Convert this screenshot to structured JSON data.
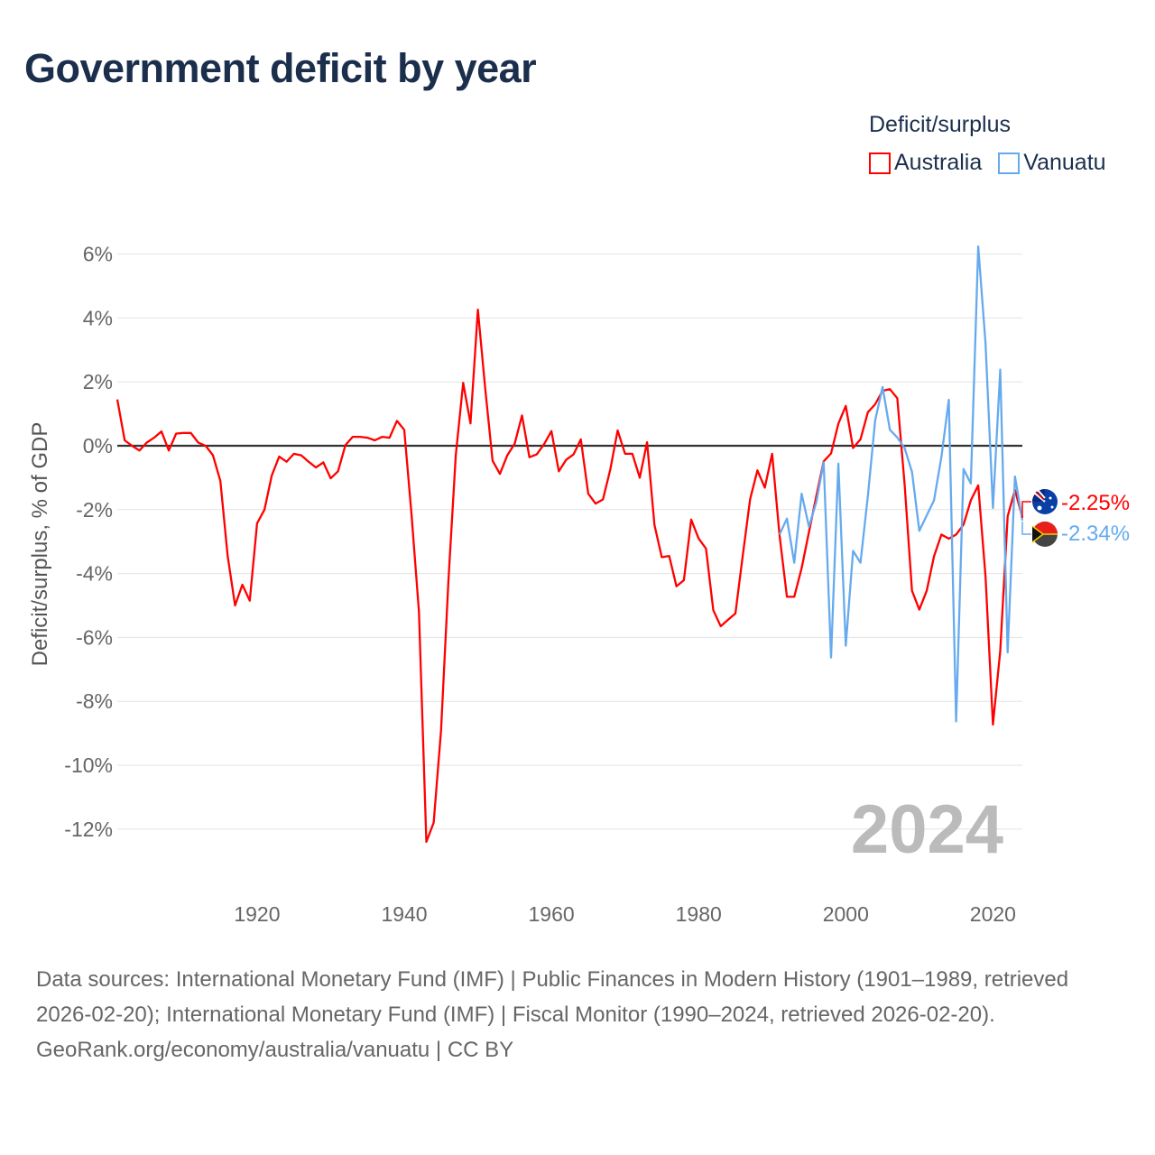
{
  "title": "Government deficit by year",
  "legend": {
    "title": "Deficit/surplus",
    "items": [
      {
        "label": "Australia",
        "color": "#ff0000"
      },
      {
        "label": "Vanuatu",
        "color": "#66aaee"
      }
    ]
  },
  "year_watermark": "2024",
  "end_labels": {
    "australia": "-2.25%",
    "vanuatu": "-2.34%"
  },
  "footer": {
    "sources": "Data sources: International Monetary Fund (IMF) | Public Finances in Modern History (1901–1989, retrieved 2026-02-20); International Monetary Fund (IMF) | Fiscal Monitor (1990–2024, retrieved 2026-02-20).",
    "credit": "GeoRank.org/economy/australia/vanuatu | CC BY"
  },
  "chart_data": {
    "type": "line",
    "title": "Government deficit by year",
    "xlabel": "",
    "ylabel": "Deficit/surplus, % of GDP",
    "xlim": [
      1901,
      2024
    ],
    "ylim": [
      -13.5,
      6.5
    ],
    "grid": true,
    "legend_position": "top-right",
    "x_ticks": [
      1920,
      1940,
      1960,
      1980,
      2000,
      2020
    ],
    "x_tick_labels": [
      "1920",
      "1940",
      "1960",
      "1980",
      "2000",
      "2020"
    ],
    "y_ticks": [
      6,
      4,
      2,
      0,
      -2,
      -4,
      -6,
      -8,
      -10,
      -12
    ],
    "y_tick_labels": [
      "6%",
      "4%",
      "2%",
      "0%",
      "-2%",
      "-4%",
      "-6%",
      "-8%",
      "-10%",
      "-12%"
    ],
    "series": [
      {
        "name": "Australia",
        "color": "#ff0000",
        "start_year": 1901,
        "values": [
          1.45,
          0.17,
          0.0,
          -0.15,
          0.1,
          0.25,
          0.45,
          -0.15,
          0.38,
          0.4,
          0.4,
          0.1,
          0.0,
          -0.3,
          -1.1,
          -3.45,
          -5.0,
          -4.35,
          -4.85,
          -2.43,
          -2.0,
          -0.93,
          -0.34,
          -0.5,
          -0.25,
          -0.3,
          -0.5,
          -0.68,
          -0.52,
          -1.02,
          -0.8,
          0.02,
          0.28,
          0.28,
          0.25,
          0.17,
          0.28,
          0.25,
          0.78,
          0.5,
          -2.2,
          -5.2,
          -12.4,
          -11.8,
          -8.9,
          -4.2,
          -0.3,
          1.97,
          0.7,
          4.26,
          1.8,
          -0.47,
          -0.88,
          -0.3,
          0.06,
          0.95,
          -0.36,
          -0.27,
          0.05,
          0.46,
          -0.8,
          -0.44,
          -0.27,
          0.2,
          -1.5,
          -1.81,
          -1.68,
          -0.75,
          0.48,
          -0.25,
          -0.25,
          -1.0,
          0.11,
          -2.48,
          -3.49,
          -3.45,
          -4.4,
          -4.21,
          -2.31,
          -2.9,
          -3.22,
          -5.15,
          -5.65,
          -5.45,
          -5.25,
          -3.45,
          -1.67,
          -0.77,
          -1.31,
          -0.25,
          -2.8,
          -4.73,
          -4.73,
          -3.83,
          -2.7,
          -1.57,
          -0.49,
          -0.24,
          0.69,
          1.25,
          -0.07,
          0.2,
          1.05,
          1.3,
          1.72,
          1.77,
          1.49,
          -1.2,
          -4.54,
          -5.13,
          -4.54,
          -3.46,
          -2.78,
          -2.91,
          -2.78,
          -2.47,
          -1.71,
          -1.24,
          -4.1,
          -8.73,
          -6.42,
          -2.21,
          -1.38,
          -2.25
        ]
      },
      {
        "name": "Vanuatu",
        "color": "#66aaee",
        "start_year": 1991,
        "values": [
          -2.78,
          -2.28,
          -3.66,
          -1.5,
          -2.53,
          -1.76,
          -0.52,
          -6.63,
          -0.56,
          -6.26,
          -3.29,
          -3.66,
          -1.57,
          0.8,
          1.84,
          0.5,
          0.26,
          -0.07,
          -0.82,
          -2.66,
          -2.18,
          -1.71,
          -0.35,
          1.44,
          -8.63,
          -0.73,
          -1.18,
          6.24,
          3.2,
          -1.95,
          2.38,
          -6.47,
          -0.96,
          -2.34
        ]
      }
    ]
  }
}
